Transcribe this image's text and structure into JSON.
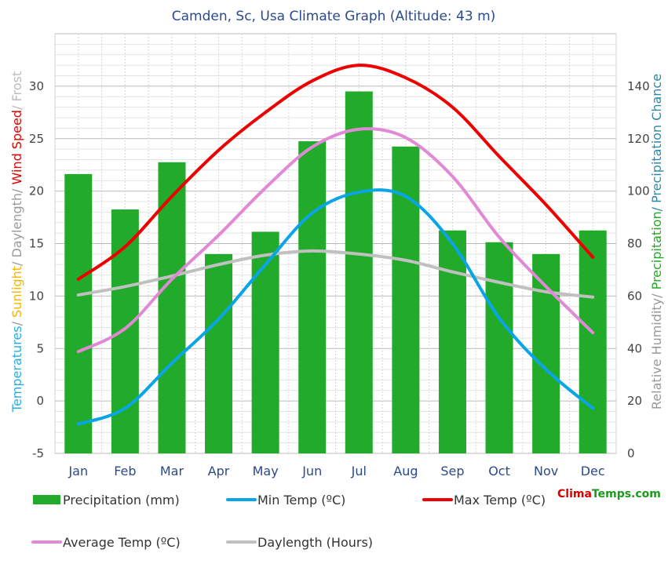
{
  "chart_data": {
    "type": "bar+line",
    "title": "Camden, Sc, Usa Climate Graph (Altitude: 43 m)",
    "categories": [
      "Jan",
      "Feb",
      "Mar",
      "Apr",
      "May",
      "Jun",
      "Jul",
      "Aug",
      "Sep",
      "Oct",
      "Nov",
      "Dec"
    ],
    "left_axis": {
      "label_parts": [
        {
          "text": "Temperatures",
          "color": "#29abe2"
        },
        {
          "text": "/ ",
          "color": "#999999"
        },
        {
          "text": "Sunlight",
          "color": "#f7b500"
        },
        {
          "text": "/ Daylength",
          "color": "#999999"
        },
        {
          "text": "/ ",
          "color": "#999999"
        },
        {
          "text": "Wind Speed",
          "color": "#e00000"
        },
        {
          "text": "/ Frost",
          "color": "#bbbbbb"
        }
      ],
      "ylim": [
        -5,
        35
      ],
      "ticks": [
        -5,
        0,
        5,
        10,
        15,
        20,
        25,
        30
      ]
    },
    "right_axis": {
      "label_parts": [
        {
          "text": "Relative Humidity",
          "color": "#999999"
        },
        {
          "text": "/ ",
          "color": "#999999"
        },
        {
          "text": "Precipitation",
          "color": "#22aa22"
        },
        {
          "text": "/ Precipitation Chance",
          "color": "#2a8aa8"
        }
      ],
      "ylim": [
        0,
        160
      ],
      "ticks": [
        0,
        20,
        40,
        60,
        80,
        100,
        120,
        140
      ]
    },
    "bars": {
      "name": "Precipitation (mm)",
      "color": "#22aa2a",
      "values": [
        106.5,
        93,
        111,
        76,
        84.5,
        119,
        138,
        117,
        85,
        80.5,
        76,
        85
      ]
    },
    "series": [
      {
        "name": "Min Temp (ºC)",
        "color": "#0aa5e6",
        "values": [
          -2.2,
          -0.7,
          3.6,
          7.8,
          13.0,
          17.9,
          19.9,
          19.5,
          15.0,
          7.9,
          3.0,
          -0.7
        ]
      },
      {
        "name": "Max Temp (ºC)",
        "color": "#ee0000",
        "values": [
          11.6,
          14.7,
          19.5,
          23.9,
          27.5,
          30.5,
          32.0,
          30.8,
          28.0,
          23.3,
          18.7,
          13.7
        ]
      },
      {
        "name": "Average Temp (ºC)",
        "color": "#e08ad6",
        "values": [
          4.7,
          6.9,
          11.6,
          15.8,
          20.3,
          24.2,
          25.9,
          25.1,
          21.4,
          15.6,
          10.9,
          6.5
        ]
      },
      {
        "name": "Daylength (Hours)",
        "color": "#c0c0c0",
        "values": [
          10.1,
          10.9,
          11.9,
          13.0,
          13.9,
          14.3,
          14.0,
          13.4,
          12.3,
          11.3,
          10.4,
          9.9
        ]
      }
    ],
    "legend_placement": "bottom",
    "grid": true
  },
  "branding": {
    "part1": "Clima",
    "part2": "Temps.com"
  }
}
